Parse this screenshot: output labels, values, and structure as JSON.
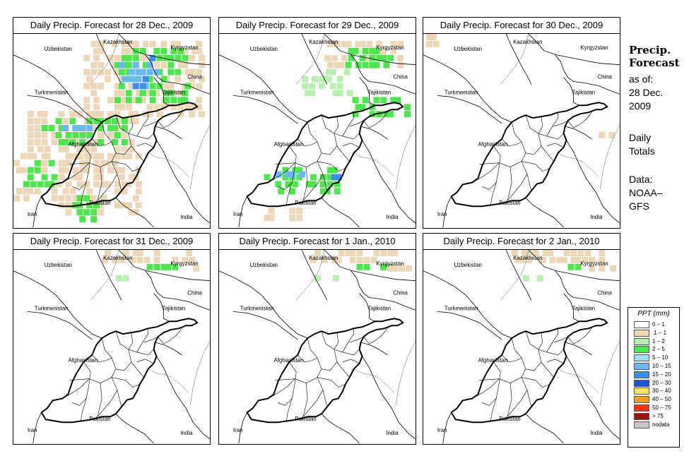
{
  "panels": [
    {
      "title": "Daily Precip. Forecast for  28 Dec., 2009",
      "level": 3
    },
    {
      "title": "Daily Precip. Forecast for  29 Dec., 2009",
      "level": 2
    },
    {
      "title": "Daily Precip. Forecast for  30 Dec., 2009",
      "level": 0
    },
    {
      "title": "Daily Precip. Forecast for  31 Dec., 2009",
      "level": 1
    },
    {
      "title": "Daily Precip. Forecast for  1 Jan., 2010",
      "level": 1
    },
    {
      "title": "Daily Precip. Forecast for  2 Jan., 2010",
      "level": 1
    }
  ],
  "countries": {
    "kazakhstan": "Kazakhstan",
    "uzbekistan": "Uzbekistan",
    "kyrgyzstan": "Kyrgyzstan",
    "china": "China",
    "turkmenistan": "Turkmenistan",
    "tajikistan": "Tajikistan",
    "afghanistan": "Afghanistan",
    "iran": "Iran",
    "pakistan": "Pakistan",
    "india": "India"
  },
  "side": {
    "title_line1": "Precip.",
    "title_line2": "Forecast",
    "asof_line1": "as of:",
    "asof_line2": "28 Dec.",
    "asof_line3": "2009",
    "daily_line1": "Daily",
    "daily_line2": "Totals",
    "data_line1": "Data:",
    "data_line2": "NOAA–",
    "data_line3": "GFS"
  },
  "legend": {
    "title": "PPT (mm)",
    "items": [
      {
        "label": "0 – 1",
        "color": "#ffffff"
      },
      {
        "label": ".1 – 1",
        "color": "#ecd7b8"
      },
      {
        "label": "1 – 2",
        "color": "#b8f0b0"
      },
      {
        "label": "2 – 5",
        "color": "#4ee64e"
      },
      {
        "label": "5 – 10",
        "color": "#a9dcf7"
      },
      {
        "label": "10 – 15",
        "color": "#6cb8f5"
      },
      {
        "label": "15 – 20",
        "color": "#3c8ff0"
      },
      {
        "label": "20 – 30",
        "color": "#1a55d6"
      },
      {
        "label": "30 – 40",
        "color": "#f5e66a"
      },
      {
        "label": "40 – 50",
        "color": "#f5a01a"
      },
      {
        "label": "50 – 75",
        "color": "#e83a14"
      },
      {
        "label": "> 75",
        "color": "#a01010"
      },
      {
        "label": "nodata",
        "color": "#c8c8c8"
      }
    ]
  }
}
